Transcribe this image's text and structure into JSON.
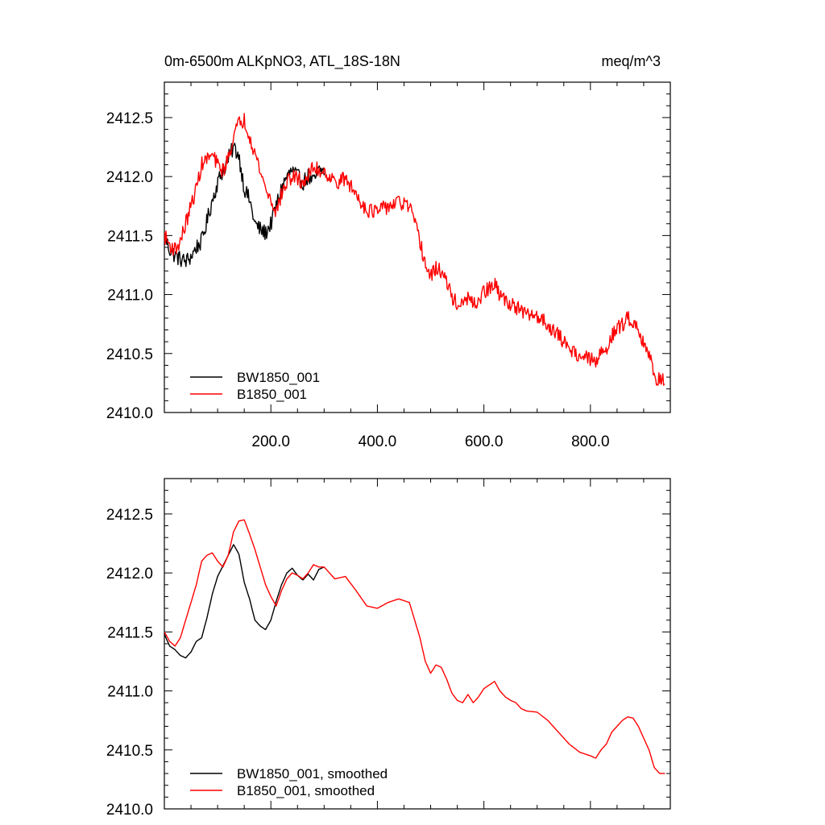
{
  "chart_data": [
    {
      "type": "line",
      "title_left": "0m-6500m ALKpNO3, ATL_18S-18N",
      "title_right": "meq/m^3",
      "xlim": [
        0,
        950
      ],
      "ylim": [
        2410.0,
        2412.8
      ],
      "yticks": [
        "2410.0",
        "2410.5",
        "2411.0",
        "2411.5",
        "2412.0",
        "2412.5"
      ],
      "ytick_values": [
        2410.0,
        2410.5,
        2411.0,
        2411.5,
        2412.0,
        2412.5
      ],
      "xticks": [
        "200.0",
        "400.0",
        "600.0",
        "800.0"
      ],
      "xtick_values": [
        200,
        400,
        600,
        800
      ],
      "show_xtick_labels": true,
      "legend_position": "bottom-left",
      "series": [
        {
          "name": "BW1850_001",
          "color": "#000000",
          "noise": 0.07,
          "x": [
            0,
            10,
            20,
            30,
            40,
            50,
            60,
            70,
            80,
            90,
            100,
            110,
            120,
            130,
            140,
            150,
            160,
            170,
            180,
            190,
            200,
            210,
            220,
            230,
            240,
            250,
            260,
            270,
            280,
            290,
            300
          ],
          "y": [
            2411.5,
            2411.38,
            2411.33,
            2411.3,
            2411.28,
            2411.32,
            2411.4,
            2411.45,
            2411.62,
            2411.8,
            2411.95,
            2412.05,
            2412.15,
            2412.25,
            2412.18,
            2411.9,
            2411.8,
            2411.6,
            2411.55,
            2411.52,
            2411.6,
            2411.75,
            2411.9,
            2412.0,
            2412.05,
            2412.0,
            2411.95,
            2412.0,
            2411.95,
            2412.05,
            2412.05
          ]
        },
        {
          "name": "B1850_001",
          "color": "#ff0000",
          "noise": 0.065,
          "x": [
            0,
            10,
            20,
            30,
            40,
            50,
            60,
            70,
            80,
            90,
            100,
            110,
            120,
            130,
            140,
            150,
            160,
            170,
            180,
            190,
            200,
            210,
            220,
            230,
            240,
            250,
            260,
            270,
            280,
            290,
            300,
            320,
            340,
            360,
            380,
            400,
            420,
            440,
            460,
            470,
            480,
            490,
            500,
            510,
            520,
            530,
            540,
            550,
            560,
            570,
            580,
            590,
            600,
            610,
            620,
            630,
            640,
            650,
            660,
            670,
            680,
            700,
            720,
            740,
            760,
            780,
            800,
            810,
            820,
            830,
            840,
            850,
            860,
            870,
            880,
            890,
            900,
            910,
            920,
            930,
            940
          ],
          "y": [
            2411.5,
            2411.42,
            2411.38,
            2411.45,
            2411.6,
            2411.75,
            2411.9,
            2412.1,
            2412.15,
            2412.18,
            2412.1,
            2412.05,
            2412.15,
            2412.35,
            2412.45,
            2412.48,
            2412.35,
            2412.2,
            2412.05,
            2411.9,
            2411.8,
            2411.7,
            2411.85,
            2411.95,
            2412.0,
            2411.98,
            2411.95,
            2412.0,
            2412.08,
            2412.05,
            2412.05,
            2411.95,
            2411.98,
            2411.85,
            2411.72,
            2411.7,
            2411.75,
            2411.78,
            2411.75,
            2411.6,
            2411.45,
            2411.25,
            2411.15,
            2411.22,
            2411.2,
            2411.1,
            2410.98,
            2410.92,
            2410.9,
            2410.98,
            2410.9,
            2410.95,
            2411.02,
            2411.05,
            2411.08,
            2411.0,
            2410.95,
            2410.92,
            2410.9,
            2410.85,
            2410.83,
            2410.82,
            2410.75,
            2410.65,
            2410.55,
            2410.48,
            2410.45,
            2410.42,
            2410.5,
            2410.55,
            2410.65,
            2410.7,
            2410.75,
            2410.8,
            2410.78,
            2410.7,
            2410.6,
            2410.5,
            2410.3,
            2410.28,
            2410.3
          ]
        }
      ]
    },
    {
      "type": "line",
      "title_left": "",
      "title_right": "",
      "xlim": [
        0,
        950
      ],
      "ylim": [
        2410.0,
        2412.8
      ],
      "yticks": [
        "2410.0",
        "2410.5",
        "2411.0",
        "2411.5",
        "2412.0",
        "2412.5"
      ],
      "ytick_values": [
        2410.0,
        2410.5,
        2411.0,
        2411.5,
        2412.0,
        2412.5
      ],
      "xticks": [
        "",
        "",
        "",
        ""
      ],
      "xtick_values": [
        200,
        400,
        600,
        800
      ],
      "show_xtick_labels": false,
      "legend_position": "bottom-left",
      "series": [
        {
          "name": "BW1850_001, smoothed",
          "color": "#000000",
          "noise": 0.0,
          "x": [
            0,
            10,
            20,
            30,
            40,
            50,
            60,
            70,
            80,
            90,
            100,
            110,
            120,
            130,
            140,
            150,
            160,
            170,
            180,
            190,
            200,
            210,
            220,
            230,
            240,
            250,
            260,
            270,
            280,
            290,
            300
          ],
          "y": [
            2411.48,
            2411.38,
            2411.35,
            2411.3,
            2411.28,
            2411.33,
            2411.42,
            2411.45,
            2411.62,
            2411.82,
            2411.97,
            2412.06,
            2412.15,
            2412.24,
            2412.16,
            2411.92,
            2411.78,
            2411.6,
            2411.55,
            2411.52,
            2411.6,
            2411.76,
            2411.9,
            2412.0,
            2412.04,
            2411.98,
            2411.94,
            2411.99,
            2411.94,
            2412.03,
            2412.05
          ]
        },
        {
          "name": "B1850_001, smoothed",
          "color": "#ff0000",
          "noise": 0.0,
          "x": [
            0,
            10,
            20,
            30,
            40,
            50,
            60,
            70,
            80,
            90,
            100,
            110,
            120,
            130,
            140,
            150,
            160,
            170,
            180,
            190,
            200,
            210,
            220,
            230,
            240,
            250,
            260,
            270,
            280,
            290,
            300,
            320,
            340,
            360,
            380,
            400,
            420,
            440,
            460,
            470,
            480,
            490,
            500,
            510,
            520,
            530,
            540,
            550,
            560,
            570,
            580,
            590,
            600,
            610,
            620,
            630,
            640,
            650,
            660,
            670,
            680,
            700,
            720,
            740,
            760,
            780,
            800,
            810,
            820,
            830,
            840,
            850,
            860,
            870,
            880,
            890,
            900,
            910,
            920,
            930,
            940
          ],
          "y": [
            2411.5,
            2411.42,
            2411.38,
            2411.45,
            2411.6,
            2411.75,
            2411.9,
            2412.1,
            2412.15,
            2412.17,
            2412.1,
            2412.05,
            2412.15,
            2412.35,
            2412.44,
            2412.45,
            2412.33,
            2412.2,
            2412.05,
            2411.9,
            2411.8,
            2411.72,
            2411.85,
            2411.95,
            2412.0,
            2411.98,
            2411.95,
            2412.0,
            2412.07,
            2412.05,
            2412.05,
            2411.95,
            2411.97,
            2411.85,
            2411.72,
            2411.7,
            2411.75,
            2411.78,
            2411.75,
            2411.6,
            2411.45,
            2411.25,
            2411.15,
            2411.22,
            2411.2,
            2411.1,
            2410.98,
            2410.92,
            2410.9,
            2410.97,
            2410.9,
            2410.95,
            2411.02,
            2411.05,
            2411.08,
            2411.0,
            2410.95,
            2410.92,
            2410.9,
            2410.85,
            2410.83,
            2410.82,
            2410.75,
            2410.65,
            2410.55,
            2410.48,
            2410.45,
            2410.43,
            2410.5,
            2410.55,
            2410.65,
            2410.7,
            2410.75,
            2410.78,
            2410.77,
            2410.7,
            2410.6,
            2410.5,
            2410.35,
            2410.3,
            2410.3
          ]
        }
      ]
    }
  ]
}
